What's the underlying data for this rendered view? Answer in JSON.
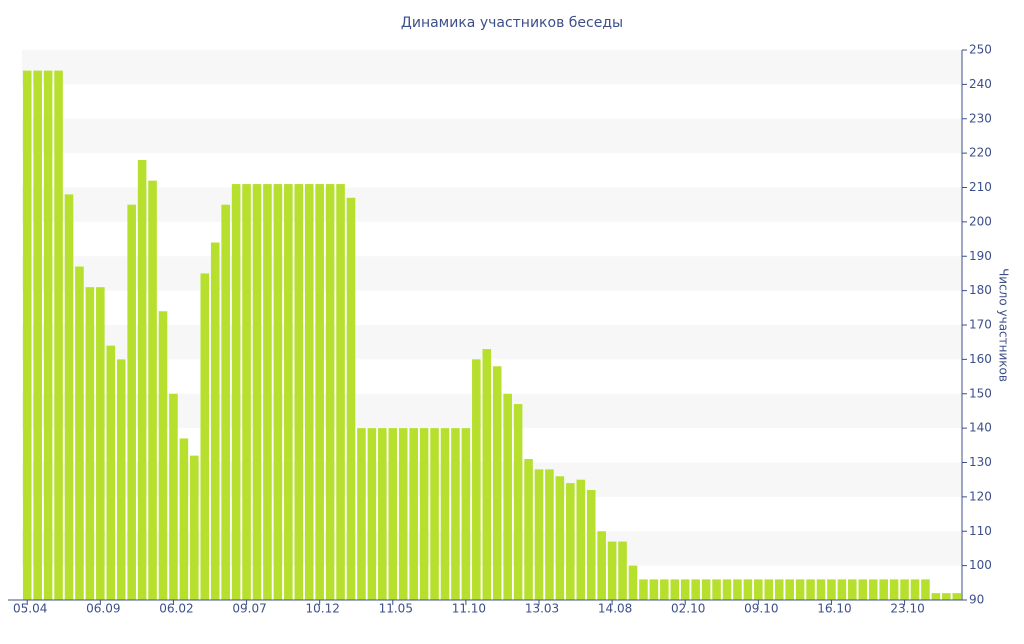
{
  "chart_data": {
    "type": "bar",
    "title": "Динамика участников беседы",
    "y_axis_label": "Число участников",
    "categories": [
      "05.04",
      null,
      null,
      null,
      null,
      null,
      null,
      "06.09",
      null,
      null,
      null,
      null,
      null,
      null,
      "06.02",
      null,
      null,
      null,
      null,
      null,
      null,
      "09.07",
      null,
      null,
      null,
      null,
      null,
      null,
      "10.12",
      null,
      null,
      null,
      null,
      null,
      null,
      "11.05",
      null,
      null,
      null,
      null,
      null,
      null,
      "11.10",
      null,
      null,
      null,
      null,
      null,
      null,
      "13.03",
      null,
      null,
      null,
      null,
      null,
      null,
      "14.08",
      null,
      null,
      null,
      null,
      null,
      null,
      "02.10",
      null,
      null,
      null,
      null,
      null,
      null,
      "09.10",
      null,
      null,
      null,
      null,
      null,
      null,
      "16.10",
      null,
      null,
      null,
      null,
      null,
      null,
      "23.10",
      null,
      null,
      null,
      null,
      null
    ],
    "values": [
      244,
      244,
      244,
      244,
      208,
      187,
      181,
      181,
      164,
      160,
      205,
      218,
      212,
      174,
      150,
      137,
      132,
      185,
      194,
      205,
      211,
      211,
      211,
      211,
      211,
      211,
      211,
      211,
      211,
      211,
      211,
      207,
      140,
      140,
      140,
      140,
      140,
      140,
      140,
      140,
      140,
      140,
      140,
      160,
      163,
      158,
      150,
      147,
      131,
      128,
      128,
      126,
      124,
      125,
      122,
      110,
      107,
      107,
      100,
      96,
      96,
      96,
      96,
      96,
      96,
      96,
      96,
      96,
      96,
      96,
      96,
      96,
      96,
      96,
      96,
      96,
      96,
      96,
      96,
      96,
      96,
      96,
      96,
      96,
      96,
      96,
      96,
      92,
      92,
      92
    ],
    "color": "#b6df2e",
    "ylim": [
      90,
      250
    ],
    "yticks": [
      90,
      100,
      110,
      120,
      130,
      140,
      150,
      160,
      170,
      180,
      190,
      200,
      210,
      220,
      230,
      240,
      250
    ],
    "y_axis_side": "right",
    "grid": "bands"
  }
}
